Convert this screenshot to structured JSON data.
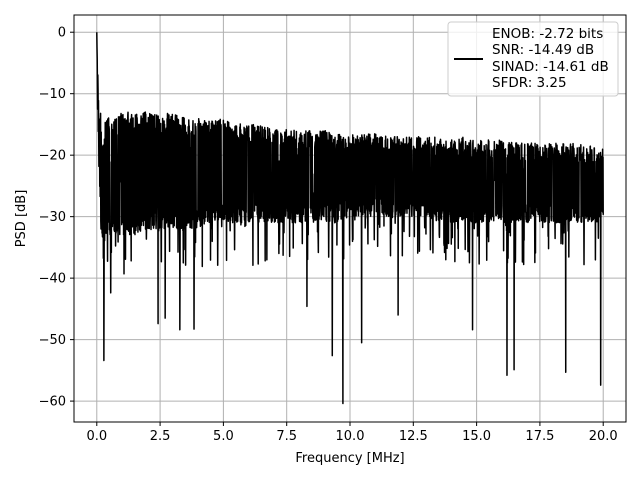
{
  "chart_data": {
    "type": "line",
    "title": "",
    "xlabel": "Frequency [MHz]",
    "ylabel": "PSD [dB]",
    "xlim": [
      -0.9,
      20.9
    ],
    "ylim": [
      -63.4,
      2.8
    ],
    "x_ticks": [
      0.0,
      2.5,
      5.0,
      7.5,
      10.0,
      12.5,
      15.0,
      17.5,
      20.0
    ],
    "x_tick_labels": [
      "0.0",
      "2.5",
      "5.0",
      "7.5",
      "10.0",
      "12.5",
      "15.0",
      "17.5",
      "20.0"
    ],
    "y_ticks": [
      0,
      -10,
      -20,
      -30,
      -40,
      -50,
      -60
    ],
    "y_tick_labels": [
      "0",
      "−10",
      "−20",
      "−30",
      "−40",
      "−50",
      "−60"
    ],
    "grid": true,
    "legend_position": "top-right",
    "legend": [
      "ENOB: -2.72 bits",
      "SNR: -14.49 dB",
      "SINAD: -14.61 dB",
      "SFDR: 3.25"
    ],
    "series_color": "#000000",
    "series": [
      {
        "x": [
          0.0,
          0.02,
          0.05,
          0.1,
          0.15,
          0.2,
          0.25,
          0.3,
          0.4,
          0.5,
          0.7,
          1.0,
          1.5,
          2.0,
          2.5,
          3.0,
          3.5,
          4.0,
          4.5,
          5.0,
          5.5,
          6.0,
          6.5,
          7.0,
          7.5,
          8.0,
          8.5,
          9.0,
          9.5,
          10.0,
          10.5,
          11.0,
          11.5,
          12.0,
          12.5,
          13.0,
          13.5,
          14.0,
          14.5,
          15.0,
          15.5,
          16.0,
          16.5,
          17.0,
          17.5,
          18.0,
          18.5,
          19.0,
          19.5,
          20.0
        ],
        "upper": [
          0,
          -2,
          -8,
          -14,
          -12,
          -18,
          -16,
          -15,
          -14,
          -13.5,
          -14,
          -13,
          -13,
          -13,
          -13.5,
          -13,
          -14,
          -14,
          -14.5,
          -14,
          -14.5,
          -15,
          -15,
          -15.5,
          -15.5,
          -16,
          -16,
          -16,
          -16.5,
          -16.5,
          -16.5,
          -16.5,
          -17,
          -17,
          -17,
          -17,
          -17,
          -17.5,
          -17,
          -17.5,
          -17.5,
          -17.5,
          -18,
          -18,
          -18,
          -18,
          -18,
          -18,
          -18.5,
          -19
        ],
        "lower": [
          -3,
          -10,
          -17,
          -25,
          -28,
          -34,
          -38,
          -34,
          -33,
          -33,
          -33,
          -33,
          -33,
          -32,
          -32,
          -32,
          -32,
          -32,
          -31,
          -31,
          -31,
          -31,
          -31,
          -31,
          -31,
          -31,
          -31,
          -31,
          -31,
          -30,
          -30,
          -30,
          -30,
          -30,
          -30,
          -30,
          -31,
          -31,
          -31,
          -31,
          -31,
          -31,
          -31,
          -31,
          -31,
          -31,
          -31,
          -31,
          -31,
          -31
        ]
      }
    ],
    "annotated_minima": [
      {
        "x": 0.28,
        "y": -53.4
      },
      {
        "x": 0.55,
        "y": -42.4
      },
      {
        "x": 2.42,
        "y": -47.4
      },
      {
        "x": 2.7,
        "y": -46.5
      },
      {
        "x": 3.28,
        "y": -48.4
      },
      {
        "x": 3.84,
        "y": -48.3
      },
      {
        "x": 8.3,
        "y": -44.6
      },
      {
        "x": 9.3,
        "y": -52.6
      },
      {
        "x": 9.72,
        "y": -60.4
      },
      {
        "x": 10.46,
        "y": -50.5
      },
      {
        "x": 11.9,
        "y": -46.0
      },
      {
        "x": 14.84,
        "y": -48.4
      },
      {
        "x": 16.2,
        "y": -55.8
      },
      {
        "x": 16.48,
        "y": -54.9
      },
      {
        "x": 18.52,
        "y": -55.3
      },
      {
        "x": 19.9,
        "y": -57.4
      }
    ]
  }
}
